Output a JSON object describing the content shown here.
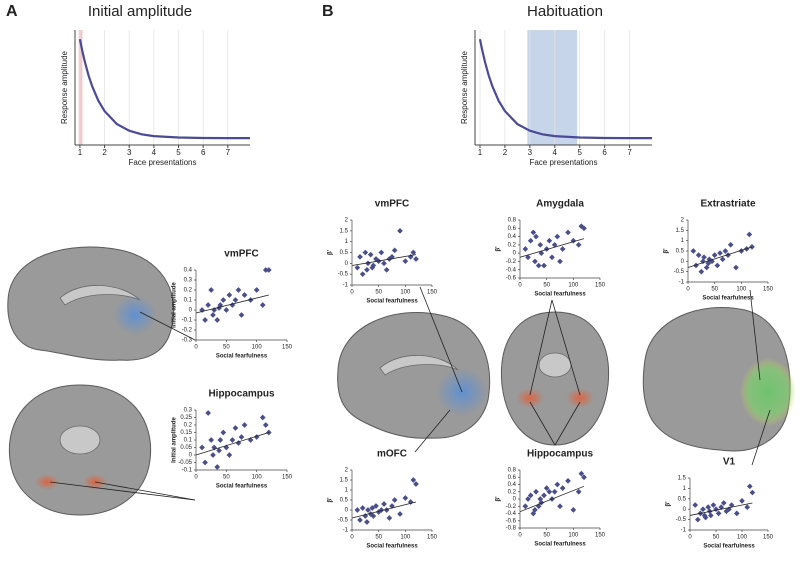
{
  "panels": [
    {
      "label": "A"
    },
    {
      "label": "B"
    }
  ],
  "chart_data": [
    {
      "type": "line",
      "title": "Initial amplitude",
      "xlabel": "Face presentations",
      "ylabel": "Response amplitude",
      "x": [
        1,
        1.05,
        1.1,
        1.2,
        1.35,
        1.5,
        1.75,
        2,
        2.5,
        3,
        3.5,
        4,
        5,
        6,
        7,
        7.9
      ],
      "values": [
        0.92,
        0.866,
        0.815,
        0.723,
        0.605,
        0.509,
        0.384,
        0.295,
        0.182,
        0.124,
        0.093,
        0.077,
        0.065,
        0.061,
        0.06,
        0.06
      ],
      "color": "#4a4a96",
      "xlim": [
        0.8,
        7.9
      ],
      "ylim": [
        0,
        1
      ],
      "xticks": [
        1,
        2,
        3,
        4,
        5,
        6,
        7
      ],
      "grid": true,
      "highlight": [
        0.95,
        1.1
      ],
      "highlight_color": "#f2c4c4"
    },
    {
      "type": "line",
      "title": "Habituation",
      "xlabel": "Face presentations",
      "ylabel": "Response amplitude",
      "x": [
        1,
        1.05,
        1.1,
        1.2,
        1.35,
        1.5,
        1.75,
        2,
        2.5,
        3,
        3.5,
        4,
        5,
        6,
        7,
        7.9
      ],
      "values": [
        0.92,
        0.866,
        0.815,
        0.723,
        0.605,
        0.509,
        0.384,
        0.295,
        0.182,
        0.124,
        0.093,
        0.077,
        0.065,
        0.061,
        0.06,
        0.06
      ],
      "color": "#4a4a96",
      "xlim": [
        0.8,
        7.9
      ],
      "ylim": [
        0,
        1
      ],
      "xticks": [
        1,
        2,
        3,
        4,
        5,
        6,
        7
      ],
      "grid": true,
      "highlight": [
        2.9,
        4.9
      ],
      "highlight_color": "#c6d5ea"
    },
    {
      "type": "scatter",
      "title": "vmPFC",
      "xlabel": "Social fearfulness",
      "ylabel": "Initial amplitude",
      "color": "#4a4f8c",
      "x": [
        10,
        15,
        20,
        25,
        28,
        30,
        35,
        38,
        40,
        45,
        50,
        55,
        60,
        65,
        70,
        75,
        80,
        90,
        100,
        110,
        115,
        120
      ],
      "values": [
        0.0,
        -0.1,
        0.05,
        0.2,
        -0.05,
        0.0,
        -0.1,
        0.02,
        0.05,
        0.1,
        0.0,
        0.15,
        0.05,
        0.1,
        0.2,
        -0.05,
        0.15,
        0.1,
        0.2,
        0.05,
        0.4,
        0.4
      ],
      "fit": [
        [
          0,
          -0.03
        ],
        [
          120,
          0.15
        ]
      ],
      "xlim": [
        0,
        150
      ],
      "xticks": [
        0,
        50,
        100,
        150
      ],
      "ylim": [
        -0.3,
        0.4
      ],
      "yticks": [
        -0.3,
        -0.2,
        -0.1,
        0,
        0.1,
        0.2,
        0.3,
        0.4
      ]
    },
    {
      "type": "scatter",
      "title": "Hippocampus",
      "xlabel": "Social fearfulness",
      "ylabel": "Initial amplitude",
      "color": "#4a4f8c",
      "x": [
        10,
        15,
        20,
        25,
        28,
        30,
        35,
        38,
        40,
        45,
        50,
        55,
        60,
        65,
        70,
        75,
        80,
        90,
        100,
        110,
        115,
        120
      ],
      "values": [
        0.05,
        -0.05,
        0.28,
        0.1,
        0.0,
        0.05,
        -0.08,
        0.03,
        0.1,
        0.15,
        0.05,
        0.0,
        0.1,
        0.18,
        0.08,
        0.12,
        0.2,
        0.1,
        0.12,
        0.25,
        0.2,
        0.15
      ],
      "fit": [
        [
          0,
          0.0
        ],
        [
          120,
          0.15
        ]
      ],
      "xlim": [
        0,
        150
      ],
      "xticks": [
        0,
        50,
        100,
        150
      ],
      "ylim": [
        -0.1,
        0.3
      ],
      "yticks": [
        -0.1,
        -0.05,
        0,
        0.05,
        0.1,
        0.15,
        0.2,
        0.25,
        0.3
      ]
    },
    {
      "type": "scatter",
      "title": "vmPFC",
      "xlabel": "Social fearfulness",
      "ylabel": "β'",
      "color": "#4a4f8c",
      "x": [
        10,
        15,
        20,
        25,
        28,
        30,
        35,
        38,
        40,
        45,
        50,
        55,
        60,
        65,
        70,
        75,
        80,
        90,
        100,
        110,
        115,
        120
      ],
      "values": [
        -0.2,
        0.3,
        -0.5,
        0.5,
        -0.3,
        0.0,
        0.4,
        -0.2,
        -0.1,
        0.2,
        0.1,
        0.5,
        0.0,
        -0.3,
        0.2,
        0.3,
        0.6,
        1.5,
        0.1,
        0.3,
        0.5,
        0.2
      ],
      "fit": [
        [
          0,
          -0.1
        ],
        [
          120,
          0.4
        ]
      ],
      "xlim": [
        0,
        150
      ],
      "xticks": [
        0,
        50,
        100,
        150
      ],
      "ylim": [
        -1,
        2
      ],
      "yticks": [
        -1,
        -0.5,
        0,
        0.5,
        1,
        1.5,
        2
      ]
    },
    {
      "type": "scatter",
      "title": "Amygdala",
      "xlabel": "Social fearfulness",
      "ylabel": "β'",
      "color": "#4a4f8c",
      "x": [
        10,
        15,
        20,
        25,
        28,
        30,
        35,
        38,
        40,
        45,
        50,
        55,
        60,
        65,
        70,
        75,
        80,
        90,
        100,
        110,
        115,
        120
      ],
      "values": [
        0.1,
        -0.1,
        0.3,
        0.5,
        -0.2,
        0.4,
        -0.3,
        0.2,
        0.0,
        -0.3,
        0.1,
        0.3,
        -0.1,
        0.2,
        0.4,
        -0.2,
        0.1,
        0.5,
        0.3,
        0.2,
        0.65,
        0.6
      ],
      "fit": [
        [
          0,
          -0.1
        ],
        [
          120,
          0.35
        ]
      ],
      "xlim": [
        0,
        150
      ],
      "xticks": [
        0,
        50,
        100,
        150
      ],
      "ylim": [
        -0.6,
        0.8
      ],
      "yticks": [
        -0.6,
        -0.4,
        -0.2,
        0,
        0.2,
        0.4,
        0.6,
        0.8
      ]
    },
    {
      "type": "scatter",
      "title": "Extrastriate",
      "xlabel": "Social fearfulness",
      "ylabel": "β'",
      "color": "#4a4f8c",
      "x": [
        10,
        15,
        20,
        25,
        28,
        30,
        35,
        38,
        40,
        45,
        50,
        55,
        60,
        65,
        70,
        75,
        80,
        90,
        100,
        110,
        115,
        120
      ],
      "values": [
        0.5,
        -0.2,
        0.3,
        -0.5,
        0.0,
        0.2,
        -0.3,
        -0.1,
        0.1,
        0.0,
        0.3,
        -0.2,
        0.4,
        0.1,
        0.5,
        0.3,
        0.8,
        -0.3,
        0.5,
        0.6,
        1.3,
        0.7
      ],
      "fit": [
        [
          0,
          -0.3
        ],
        [
          120,
          0.7
        ]
      ],
      "xlim": [
        0,
        150
      ],
      "xticks": [
        0,
        50,
        100,
        150
      ],
      "ylim": [
        -1,
        2
      ],
      "yticks": [
        -1,
        -0.5,
        0,
        0.5,
        1,
        1.5,
        2
      ]
    },
    {
      "type": "scatter",
      "title": "mOFC",
      "xlabel": "Social fearfulness",
      "ylabel": "β'",
      "color": "#4a4f8c",
      "x": [
        10,
        15,
        20,
        25,
        28,
        30,
        35,
        38,
        40,
        45,
        50,
        55,
        60,
        65,
        70,
        75,
        80,
        90,
        100,
        110,
        115,
        120
      ],
      "values": [
        0.0,
        -0.5,
        0.1,
        -0.3,
        -0.6,
        0.0,
        -0.2,
        0.1,
        -0.3,
        0.2,
        -0.1,
        0.0,
        0.3,
        0.0,
        -0.4,
        0.2,
        0.5,
        -0.2,
        0.6,
        0.4,
        1.5,
        1.3
      ],
      "fit": [
        [
          0,
          -0.4
        ],
        [
          120,
          0.4
        ]
      ],
      "xlim": [
        0,
        150
      ],
      "xticks": [
        0,
        50,
        100,
        150
      ],
      "ylim": [
        -1,
        2
      ],
      "yticks": [
        -1,
        -0.5,
        0,
        0.5,
        1,
        1.5,
        2
      ]
    },
    {
      "type": "scatter",
      "title": "Hippocampus",
      "xlabel": "Social fearfulness",
      "ylabel": "β'",
      "color": "#4a4f8c",
      "x": [
        10,
        15,
        20,
        25,
        28,
        30,
        35,
        38,
        40,
        45,
        50,
        55,
        60,
        65,
        70,
        75,
        80,
        90,
        100,
        110,
        115,
        120
      ],
      "values": [
        -0.2,
        0.0,
        0.1,
        -0.4,
        -0.3,
        0.2,
        -0.2,
        0.0,
        -0.1,
        0.1,
        0.3,
        0.2,
        0.0,
        0.2,
        0.4,
        -0.2,
        0.3,
        0.5,
        -0.3,
        0.2,
        0.7,
        0.6
      ],
      "fit": [
        [
          0,
          -0.35
        ],
        [
          120,
          0.35
        ]
      ],
      "xlim": [
        0,
        150
      ],
      "xticks": [
        0,
        50,
        100,
        150
      ],
      "ylim": [
        -0.8,
        0.8
      ],
      "yticks": [
        -0.8,
        -0.6,
        -0.4,
        -0.2,
        0,
        0.2,
        0.4,
        0.6,
        0.8
      ]
    },
    {
      "type": "scatter",
      "title": "V1",
      "xlabel": "Social fearfulness",
      "ylabel": "β'",
      "color": "#4a4f8c",
      "x": [
        10,
        15,
        20,
        25,
        28,
        30,
        35,
        38,
        40,
        45,
        50,
        55,
        60,
        65,
        70,
        75,
        80,
        90,
        100,
        110,
        115,
        120
      ],
      "values": [
        0.2,
        -0.5,
        -0.2,
        0.0,
        -0.3,
        -0.4,
        0.1,
        -0.1,
        -0.3,
        0.2,
        0.0,
        -0.2,
        0.1,
        0.3,
        -0.1,
        0.0,
        0.2,
        -0.2,
        0.4,
        0.1,
        1.1,
        0.8
      ],
      "fit": [
        [
          0,
          -0.3
        ],
        [
          120,
          0.3
        ]
      ],
      "xlim": [
        0,
        150
      ],
      "xticks": [
        0,
        50,
        100,
        150
      ],
      "ylim": [
        -1,
        1.5
      ],
      "yticks": [
        -1,
        -0.5,
        0,
        0.5,
        1,
        1.5
      ]
    }
  ]
}
